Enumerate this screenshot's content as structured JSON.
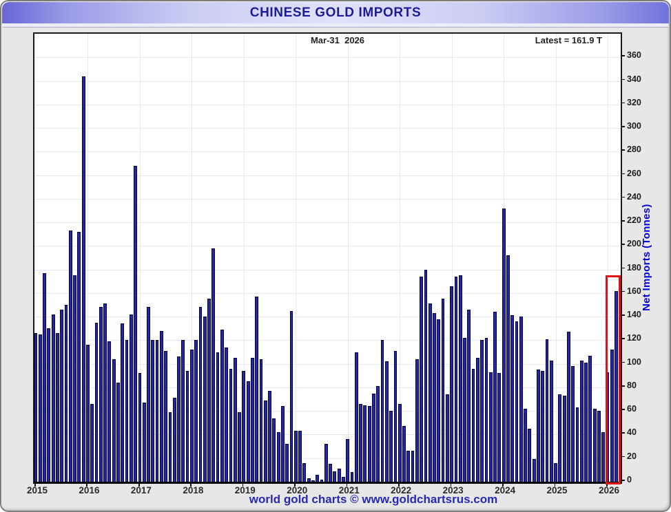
{
  "window": {
    "title": "CHINESE GOLD IMPORTS"
  },
  "annotations": {
    "date_label": "Mar-31  2026",
    "latest_label": "Latest = 161.9 T"
  },
  "y_axis": {
    "title": "Net Imports (Tonnes)",
    "tick_labels": [
      "0",
      "20",
      "40",
      "60",
      "80",
      "100",
      "120",
      "140",
      "160",
      "180",
      "200",
      "220",
      "240",
      "260",
      "280",
      "300",
      "320",
      "340",
      "360"
    ]
  },
  "x_axis": {
    "year_labels": [
      "2015",
      "2016",
      "2017",
      "2018",
      "2019",
      "2020",
      "2021",
      "2022",
      "2023",
      "2024",
      "2025",
      "2026"
    ]
  },
  "footer": {
    "credit": "world gold charts © www.goldchartsrus.com"
  },
  "colors": {
    "bar_fill": "#26269e",
    "bar_border": "#000040",
    "highlight_box": "#e01212",
    "title_text": "#1c1c96",
    "axis_title_text": "#0202dd",
    "credit_text": "#2828b8"
  },
  "chart_data": {
    "type": "bar",
    "title": "CHINESE GOLD IMPORTS",
    "ylabel": "Net Imports (Tonnes)",
    "unit": "tonnes",
    "frequency": "monthly",
    "start": "2015-01",
    "end": "2026-03",
    "latest": {
      "date": "Mar-31 2026",
      "value": 161.9
    },
    "ylim": [
      0,
      380
    ],
    "ytick_step": 20,
    "grid": true,
    "highlight": "final two months outlined with red box",
    "series": [
      {
        "name": "Net Imports",
        "values_by_year": {
          "2015": [
            126,
            125,
            177,
            130,
            142,
            126,
            146,
            150,
            213,
            175,
            212,
            344
          ],
          "2016": [
            116,
            66,
            135,
            148,
            151,
            119,
            104,
            84,
            134,
            120,
            142,
            268
          ],
          "2017": [
            92,
            67,
            148,
            120,
            120,
            128,
            111,
            59,
            71,
            106,
            120,
            94
          ],
          "2018": [
            112,
            120,
            148,
            140,
            155,
            198,
            110,
            129,
            114,
            96,
            105,
            59
          ],
          "2019": [
            94,
            85,
            105,
            157,
            104,
            69,
            77,
            54,
            42,
            64,
            32,
            145
          ],
          "2020": [
            43,
            43,
            16,
            3,
            1,
            6,
            2,
            32,
            15,
            9,
            11,
            4
          ],
          "2021": [
            36,
            8,
            110,
            66,
            65,
            64,
            75,
            81,
            120,
            102,
            60,
            111
          ],
          "2022": [
            66,
            47,
            26,
            26,
            104,
            174,
            180,
            151,
            143,
            138,
            155,
            74
          ],
          "2023": [
            166,
            174,
            175,
            122,
            146,
            96,
            105,
            120,
            122,
            93,
            144,
            92
          ],
          "2024": [
            232,
            192,
            141,
            136,
            140,
            62,
            45,
            19,
            95,
            94,
            121,
            103
          ],
          "2025": [
            16,
            74,
            73,
            127,
            98,
            63,
            103,
            101,
            107,
            62,
            60,
            42
          ],
          "2026": [
            93,
            112,
            161.9
          ]
        }
      }
    ]
  }
}
